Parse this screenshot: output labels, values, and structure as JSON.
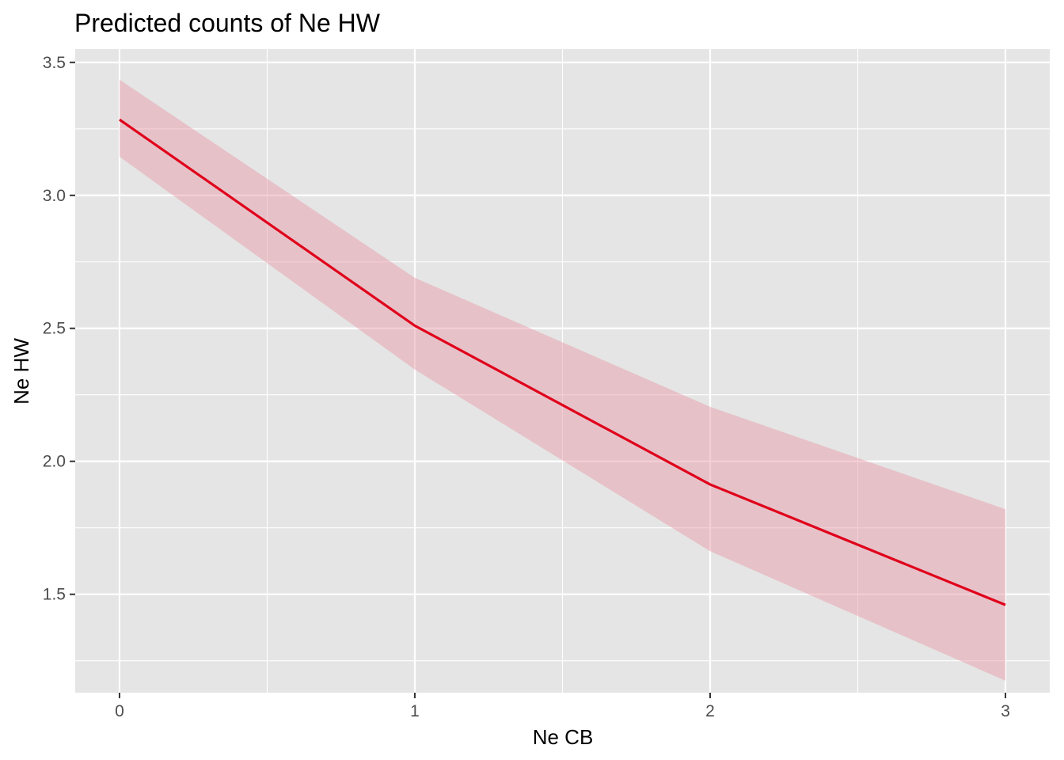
{
  "chart_data": {
    "type": "line",
    "title": "Predicted counts of Ne HW",
    "xlabel": "Ne CB",
    "ylabel": "Ne HW",
    "x": [
      0,
      1,
      2,
      3
    ],
    "series": [
      {
        "values": [
          3.285,
          2.51,
          1.913,
          1.46
        ],
        "ci_lower": [
          3.145,
          2.345,
          1.662,
          1.175
        ],
        "ci_upper": [
          3.435,
          2.69,
          2.205,
          1.82
        ]
      }
    ],
    "xlim": [
      -0.15,
      3.15
    ],
    "ylim": [
      1.13,
      3.55
    ],
    "x_ticks": [
      0,
      1,
      2,
      3
    ],
    "x_tick_labels": [
      "0",
      "1",
      "2",
      "3"
    ],
    "x_minor_ticks": [
      0.5,
      1.5,
      2.5
    ],
    "y_ticks": [
      1.5,
      2.0,
      2.5,
      3.0,
      3.5
    ],
    "y_tick_labels": [
      "1.5",
      "2.0",
      "2.5",
      "3.0",
      "3.5"
    ],
    "y_minor_ticks": [
      1.25,
      1.75,
      2.25,
      2.75,
      3.25
    ],
    "grid": true,
    "legend": "none",
    "colors": {
      "panel_background": "#e5e5e5",
      "grid_line": "#ffffff",
      "line": "#e0001b",
      "ribbon": "#e8a0ab",
      "tick_label": "#4d4d4d",
      "tick_mark": "#333333"
    }
  }
}
